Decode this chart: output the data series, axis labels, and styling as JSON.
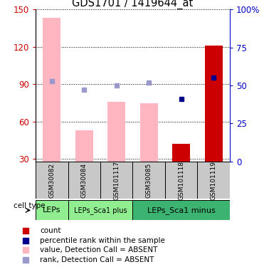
{
  "title": "GDS1701 / 1419644_at",
  "samples": [
    "GSM30082",
    "GSM30084",
    "GSM101117",
    "GSM30085",
    "GSM101118",
    "GSM101119"
  ],
  "cell_groups": [
    {
      "label": "LEPs",
      "start": 0,
      "end": 1,
      "color": "#90EE90",
      "fontsize": 8
    },
    {
      "label": "LEPs_Sca1 plus",
      "start": 1,
      "end": 3,
      "color": "#90EE90",
      "fontsize": 7
    },
    {
      "label": "LEPs_Sca1 minus",
      "start": 3,
      "end": 6,
      "color": "#3CB371",
      "fontsize": 8
    }
  ],
  "bar_values_pink": [
    143,
    53,
    76,
    75,
    null,
    null
  ],
  "bar_values_red": [
    null,
    null,
    null,
    null,
    42,
    121
  ],
  "rank_dots_blue_dark": [
    null,
    null,
    null,
    null,
    41,
    55
  ],
  "rank_dots_blue_light": [
    53,
    47,
    50,
    52,
    null,
    null
  ],
  "ylim_left": [
    28,
    150
  ],
  "ylim_right": [
    0,
    100
  ],
  "yticks_left": [
    30,
    60,
    90,
    120,
    150
  ],
  "yticks_right": [
    0,
    25,
    50,
    75,
    100
  ],
  "left_axis_color": "#CC0000",
  "right_axis_color": "#0000CC",
  "bar_width": 0.55,
  "pink_bar_color": "#FFB6C1",
  "red_bar_color": "#CC0000",
  "blue_dark_color": "#00008B",
  "blue_light_color": "#9999CC",
  "sample_box_color": "#C8C8C8",
  "legend_items": [
    {
      "label": "count",
      "color": "#CC0000"
    },
    {
      "label": "percentile rank within the sample",
      "color": "#00008B"
    },
    {
      "label": "value, Detection Call = ABSENT",
      "color": "#FFB6C1"
    },
    {
      "label": "rank, Detection Call = ABSENT",
      "color": "#9999CC"
    }
  ]
}
